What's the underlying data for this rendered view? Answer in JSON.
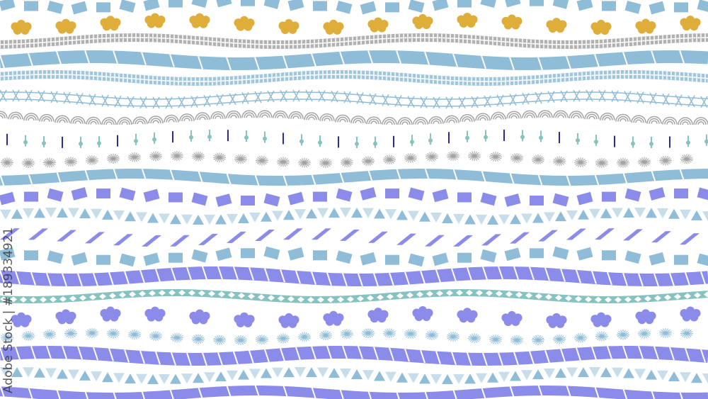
{
  "watermark": "Adobe Stock | #189334921",
  "colors": {
    "blue": "#8fbcd6",
    "gold": "#dfae3a",
    "gray": "#a3a3a3",
    "purple": "#8b8bea",
    "teal": "#86c3c0",
    "navy": "#2a2aa0"
  },
  "rows": [
    {
      "pattern": "blocks",
      "color": "blue"
    },
    {
      "pattern": "flowers",
      "color": "gold"
    },
    {
      "pattern": "grid-band",
      "color": "gray"
    },
    {
      "pattern": "solid-wave",
      "color": "blue"
    },
    {
      "pattern": "grid-band",
      "color": "blue"
    },
    {
      "pattern": "lattice",
      "color": "blue"
    },
    {
      "pattern": "seigaiha",
      "color": "gray"
    },
    {
      "pattern": "dot-sticks",
      "color": "teal"
    },
    {
      "pattern": "stars",
      "color": "gray"
    },
    {
      "pattern": "asanoha-wave",
      "color": "blue"
    },
    {
      "pattern": "blocks",
      "color": "purple"
    },
    {
      "pattern": "triangles",
      "color": "blue"
    },
    {
      "pattern": "zigzag",
      "color": "purple"
    },
    {
      "pattern": "blocks",
      "color": "blue"
    },
    {
      "pattern": "stripe-band",
      "color": "purple"
    },
    {
      "pattern": "diamonds",
      "color": "teal"
    },
    {
      "pattern": "flowers",
      "color": "purple"
    },
    {
      "pattern": "stars",
      "color": "blue"
    },
    {
      "pattern": "stripe-band",
      "color": "purple"
    },
    {
      "pattern": "triangles",
      "color": "blue"
    },
    {
      "pattern": "asanoha-wave",
      "color": "purple"
    }
  ]
}
